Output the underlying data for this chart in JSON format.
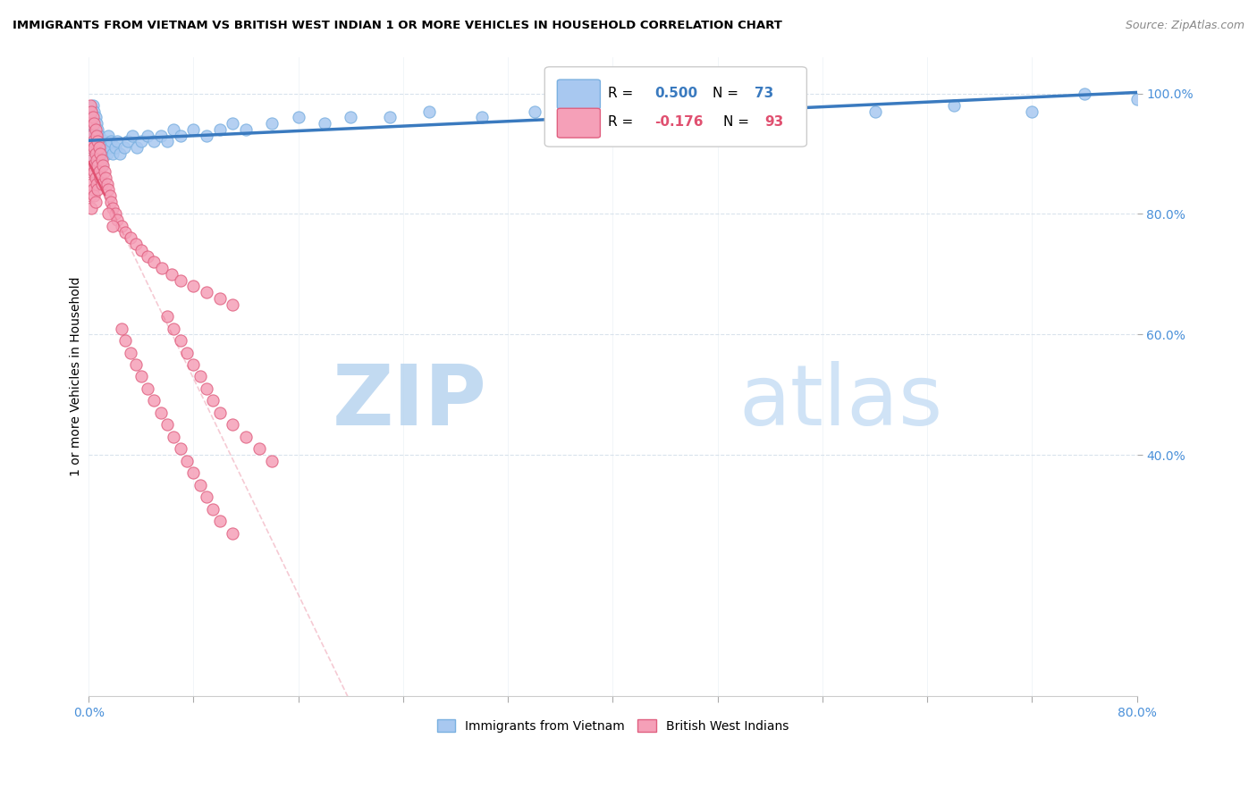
{
  "title": "IMMIGRANTS FROM VIETNAM VS BRITISH WEST INDIAN 1 OR MORE VEHICLES IN HOUSEHOLD CORRELATION CHART",
  "source": "Source: ZipAtlas.com",
  "ylabel": "1 or more Vehicles in Household",
  "xlim": [
    0.0,
    0.8
  ],
  "ylim": [
    0.0,
    1.06
  ],
  "vietnam_R": 0.5,
  "vietnam_N": 73,
  "bwi_R": -0.176,
  "bwi_N": 93,
  "vietnam_color": "#a8c8f0",
  "vietnam_edge": "#7ab0e0",
  "bwi_color": "#f5a0b8",
  "bwi_edge": "#e06080",
  "trend_vietnam_color": "#3a7abf",
  "trend_bwi_color": "#e05070",
  "watermark_zip": "ZIP",
  "watermark_atlas": "atlas",
  "watermark_color": "#c8dff5",
  "legend_label_vietnam": "Immigrants from Vietnam",
  "legend_label_bwi": "British West Indians",
  "background_color": "#ffffff",
  "vietnam_x": [
    0.001,
    0.001,
    0.002,
    0.002,
    0.002,
    0.003,
    0.003,
    0.003,
    0.003,
    0.004,
    0.004,
    0.004,
    0.004,
    0.005,
    0.005,
    0.005,
    0.006,
    0.006,
    0.006,
    0.007,
    0.007,
    0.007,
    0.008,
    0.008,
    0.009,
    0.009,
    0.01,
    0.01,
    0.011,
    0.012,
    0.013,
    0.014,
    0.015,
    0.016,
    0.017,
    0.018,
    0.02,
    0.022,
    0.024,
    0.027,
    0.03,
    0.033,
    0.037,
    0.04,
    0.045,
    0.05,
    0.055,
    0.06,
    0.065,
    0.07,
    0.08,
    0.09,
    0.1,
    0.11,
    0.12,
    0.14,
    0.16,
    0.18,
    0.2,
    0.23,
    0.26,
    0.3,
    0.34,
    0.38,
    0.43,
    0.48,
    0.54,
    0.6,
    0.66,
    0.72,
    0.76,
    0.8
  ],
  "vietnam_y": [
    0.96,
    0.93,
    0.97,
    0.94,
    0.91,
    0.98,
    0.95,
    0.92,
    0.89,
    0.97,
    0.94,
    0.91,
    0.88,
    0.96,
    0.93,
    0.9,
    0.95,
    0.92,
    0.89,
    0.94,
    0.91,
    0.88,
    0.93,
    0.9,
    0.92,
    0.89,
    0.91,
    0.88,
    0.9,
    0.92,
    0.91,
    0.9,
    0.93,
    0.91,
    0.92,
    0.9,
    0.91,
    0.92,
    0.9,
    0.91,
    0.92,
    0.93,
    0.91,
    0.92,
    0.93,
    0.92,
    0.93,
    0.92,
    0.94,
    0.93,
    0.94,
    0.93,
    0.94,
    0.95,
    0.94,
    0.95,
    0.96,
    0.95,
    0.96,
    0.96,
    0.97,
    0.96,
    0.97,
    0.97,
    0.97,
    0.97,
    0.98,
    0.97,
    0.98,
    0.97,
    1.0,
    0.99
  ],
  "bwi_x": [
    0.001,
    0.001,
    0.001,
    0.001,
    0.001,
    0.002,
    0.002,
    0.002,
    0.002,
    0.002,
    0.003,
    0.003,
    0.003,
    0.003,
    0.004,
    0.004,
    0.004,
    0.004,
    0.005,
    0.005,
    0.005,
    0.005,
    0.006,
    0.006,
    0.006,
    0.007,
    0.007,
    0.007,
    0.008,
    0.008,
    0.009,
    0.009,
    0.01,
    0.01,
    0.011,
    0.012,
    0.013,
    0.014,
    0.015,
    0.016,
    0.017,
    0.018,
    0.02,
    0.022,
    0.025,
    0.028,
    0.032,
    0.036,
    0.04,
    0.045,
    0.05,
    0.056,
    0.063,
    0.07,
    0.08,
    0.09,
    0.1,
    0.11,
    0.025,
    0.028,
    0.032,
    0.036,
    0.04,
    0.045,
    0.05,
    0.055,
    0.06,
    0.065,
    0.07,
    0.075,
    0.08,
    0.085,
    0.09,
    0.095,
    0.1,
    0.11,
    0.06,
    0.065,
    0.07,
    0.075,
    0.08,
    0.085,
    0.09,
    0.095,
    0.1,
    0.11,
    0.12,
    0.13,
    0.14,
    0.015,
    0.018
  ],
  "bwi_y": [
    0.98,
    0.95,
    0.91,
    0.87,
    0.83,
    0.97,
    0.93,
    0.89,
    0.85,
    0.81,
    0.96,
    0.92,
    0.88,
    0.84,
    0.95,
    0.91,
    0.87,
    0.83,
    0.94,
    0.9,
    0.86,
    0.82,
    0.93,
    0.89,
    0.85,
    0.92,
    0.88,
    0.84,
    0.91,
    0.87,
    0.9,
    0.86,
    0.89,
    0.85,
    0.88,
    0.87,
    0.86,
    0.85,
    0.84,
    0.83,
    0.82,
    0.81,
    0.8,
    0.79,
    0.78,
    0.77,
    0.76,
    0.75,
    0.74,
    0.73,
    0.72,
    0.71,
    0.7,
    0.69,
    0.68,
    0.67,
    0.66,
    0.65,
    0.61,
    0.59,
    0.57,
    0.55,
    0.53,
    0.51,
    0.49,
    0.47,
    0.45,
    0.43,
    0.41,
    0.39,
    0.37,
    0.35,
    0.33,
    0.31,
    0.29,
    0.27,
    0.63,
    0.61,
    0.59,
    0.57,
    0.55,
    0.53,
    0.51,
    0.49,
    0.47,
    0.45,
    0.43,
    0.41,
    0.39,
    0.8,
    0.78
  ]
}
